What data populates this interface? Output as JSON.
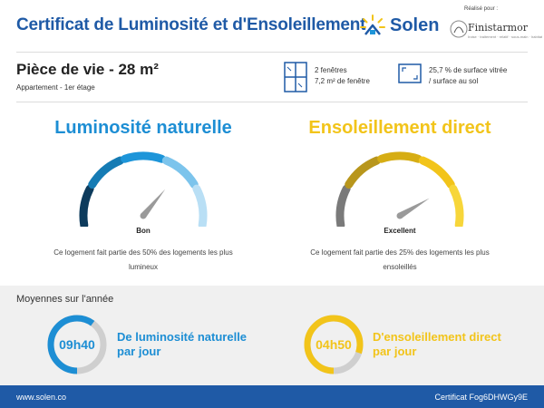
{
  "header": {
    "title": "Certificat de Luminosité et d'Ensoleillement",
    "brand": "Solen",
    "realise_par": "Réalisé pour :",
    "partner": "Finistarmor",
    "partner_tagline": "Iroise · traitement · relatif · sous-main · habitat"
  },
  "room": {
    "title": "Pièce de vie - 28 m²",
    "subtitle": "Appartement - 1er étage",
    "windows_line1": "2 fenêtres",
    "windows_line2": "7,2 m² de fenêtre",
    "surface_line1": "25,7 % de surface vitrée",
    "surface_line2": "/ surface au sol"
  },
  "luminosity": {
    "title": "Luminosité naturelle",
    "rating": "Bon",
    "desc_line1": "Ce logement fait partie des 50% des logements les plus",
    "desc_line2": "lumineux",
    "level": 0.7,
    "colors": [
      "#0d3b5c",
      "#157bb4",
      "#1d95d9",
      "#7cc4ec",
      "#b9dff5"
    ]
  },
  "sunshine": {
    "title": "Ensoleillement direct",
    "rating": "Excellent",
    "desc_line1": "Ce logement fait partie des 25% des logements les plus",
    "desc_line2": "ensoleillés",
    "level": 0.8,
    "colors": [
      "#7a7a7a",
      "#b8961c",
      "#d6ad14",
      "#f2c41a",
      "#f7d63a"
    ]
  },
  "averages": {
    "title": "Moyennes sur l'année",
    "lum_value": "09h40",
    "lum_label_line1": "De luminosité naturelle",
    "lum_label_line2": "par jour",
    "lum_fraction": 0.4,
    "sun_value": "04h50",
    "sun_label_line1": "D'ensoleillement direct",
    "sun_label_line2": "par jour",
    "sun_fraction": 0.2
  },
  "footer": {
    "url": "www.solen.co",
    "certificate": "Certificat Fog6DHWGy9E"
  },
  "colors": {
    "brand_blue": "#1f5aa6",
    "lum_blue": "#1d8ed4",
    "sun_yellow": "#f2c41a",
    "ring_track": "#cfcfcf"
  }
}
